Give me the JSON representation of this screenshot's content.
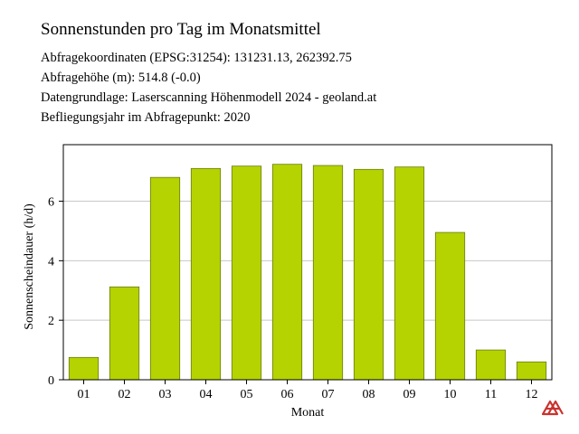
{
  "header": {
    "title": "Sonnenstunden pro Tag im Monatsmittel",
    "lines": [
      "Abfragekoordinaten (EPSG:31254): 131231.13, 262392.75",
      "Abfragehöhe (m): 514.8 (-0.0)",
      "Datengrundlage: Laserscanning Höhenmodell 2024 - geoland.at",
      "Befliegungsjahr im Abfragepunkt: 2020"
    ]
  },
  "chart_data": {
    "type": "bar",
    "title": "",
    "categories": [
      "01",
      "02",
      "03",
      "04",
      "05",
      "06",
      "07",
      "08",
      "09",
      "10",
      "11",
      "12"
    ],
    "values": [
      0.75,
      3.12,
      6.8,
      7.1,
      7.18,
      7.24,
      7.2,
      7.07,
      7.15,
      4.95,
      1.0,
      0.6
    ],
    "xlabel": "Monat",
    "ylabel": "Sonnenscheindauer (h/d)",
    "ylim": [
      0,
      7.9
    ],
    "yticks": [
      0,
      2,
      4,
      6
    ],
    "grid": true,
    "bar_color": "#b5d300",
    "bar_edge_color": "#6b7a10",
    "grid_color": "#c8c8c8"
  },
  "logo": {
    "icon": "red-geometric-logo-icon",
    "color": "#c9332e"
  }
}
